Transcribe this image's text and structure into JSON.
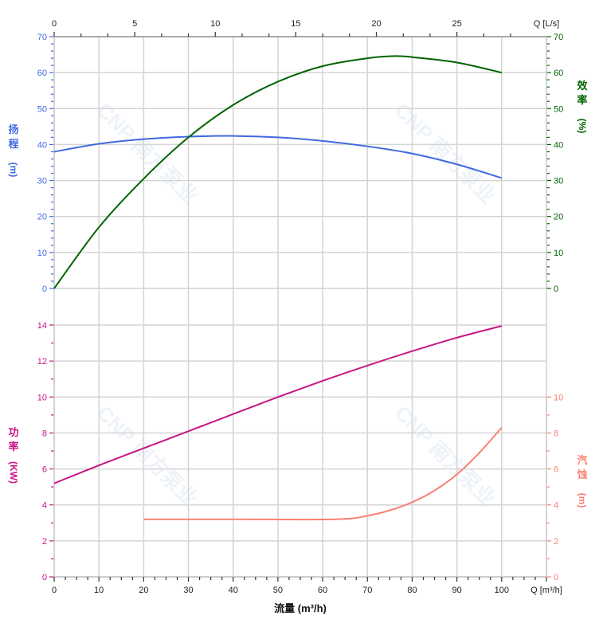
{
  "chart_data": {
    "type": "line",
    "watermark": "CNP 南方泵业",
    "x": {
      "label": "流量 (m³/h)",
      "unit_label": "Q [m³/h]",
      "range": [
        0,
        110
      ],
      "ticks": [
        0,
        10,
        20,
        30,
        40,
        50,
        60,
        70,
        80,
        90,
        100
      ]
    },
    "x_top": {
      "unit_label": "Q [L/s]",
      "range": [
        0,
        30.56
      ],
      "ticks": [
        0,
        5,
        10,
        15,
        20,
        25
      ]
    },
    "axes": {
      "head": {
        "label_chars": [
          "扬",
          "程",
          "(m)"
        ],
        "range": [
          0,
          70
        ],
        "ticks": [
          0,
          10,
          20,
          30,
          40,
          50,
          60,
          70
        ],
        "color": "#4169e1"
      },
      "eff": {
        "label_chars": [
          "效",
          "率",
          "(%)"
        ],
        "range": [
          0,
          70
        ],
        "ticks": [
          0,
          10,
          20,
          30,
          40,
          50,
          60,
          70
        ],
        "color": "#006400"
      },
      "power": {
        "label_chars": [
          "功",
          "率",
          "(KW)"
        ],
        "range": [
          0,
          14
        ],
        "ticks": [
          0,
          2,
          4,
          6,
          8,
          10,
          12,
          14
        ],
        "color": "#c71585"
      },
      "npsh": {
        "label_chars": [
          "汽",
          "蚀",
          "(m)"
        ],
        "range": [
          0,
          14
        ],
        "ticks": [
          0,
          2,
          4,
          6,
          8,
          10
        ],
        "color": "#fa8072"
      }
    },
    "series": [
      {
        "name": "扬程",
        "axis": "head",
        "x": [
          0,
          10,
          20,
          30,
          40,
          50,
          60,
          70,
          80,
          90,
          100
        ],
        "y": [
          38,
          40.2,
          41.5,
          42.2,
          42.4,
          42,
          41,
          39.5,
          37.5,
          34.5,
          30.7
        ]
      },
      {
        "name": "效率",
        "axis": "eff",
        "x": [
          0,
          10,
          20,
          30,
          40,
          50,
          60,
          70,
          76,
          80,
          90,
          100
        ],
        "y": [
          0,
          17,
          30.5,
          42,
          51,
          57.5,
          61.8,
          64,
          64.6,
          64.3,
          62.8,
          60
        ]
      },
      {
        "name": "功率",
        "axis": "power",
        "x": [
          0,
          10,
          20,
          30,
          40,
          50,
          60,
          70,
          80,
          90,
          100
        ],
        "y": [
          5.2,
          6.2,
          7.15,
          8.1,
          9.05,
          10,
          10.9,
          11.75,
          12.55,
          13.3,
          13.95
        ]
      },
      {
        "name": "汽蚀",
        "axis": "npsh",
        "x": [
          20,
          40,
          63,
          70,
          75,
          80,
          85,
          90,
          95,
          100
        ],
        "y": [
          3.2,
          3.2,
          3.2,
          3.4,
          3.7,
          4.15,
          4.8,
          5.7,
          6.9,
          8.3
        ]
      }
    ]
  }
}
